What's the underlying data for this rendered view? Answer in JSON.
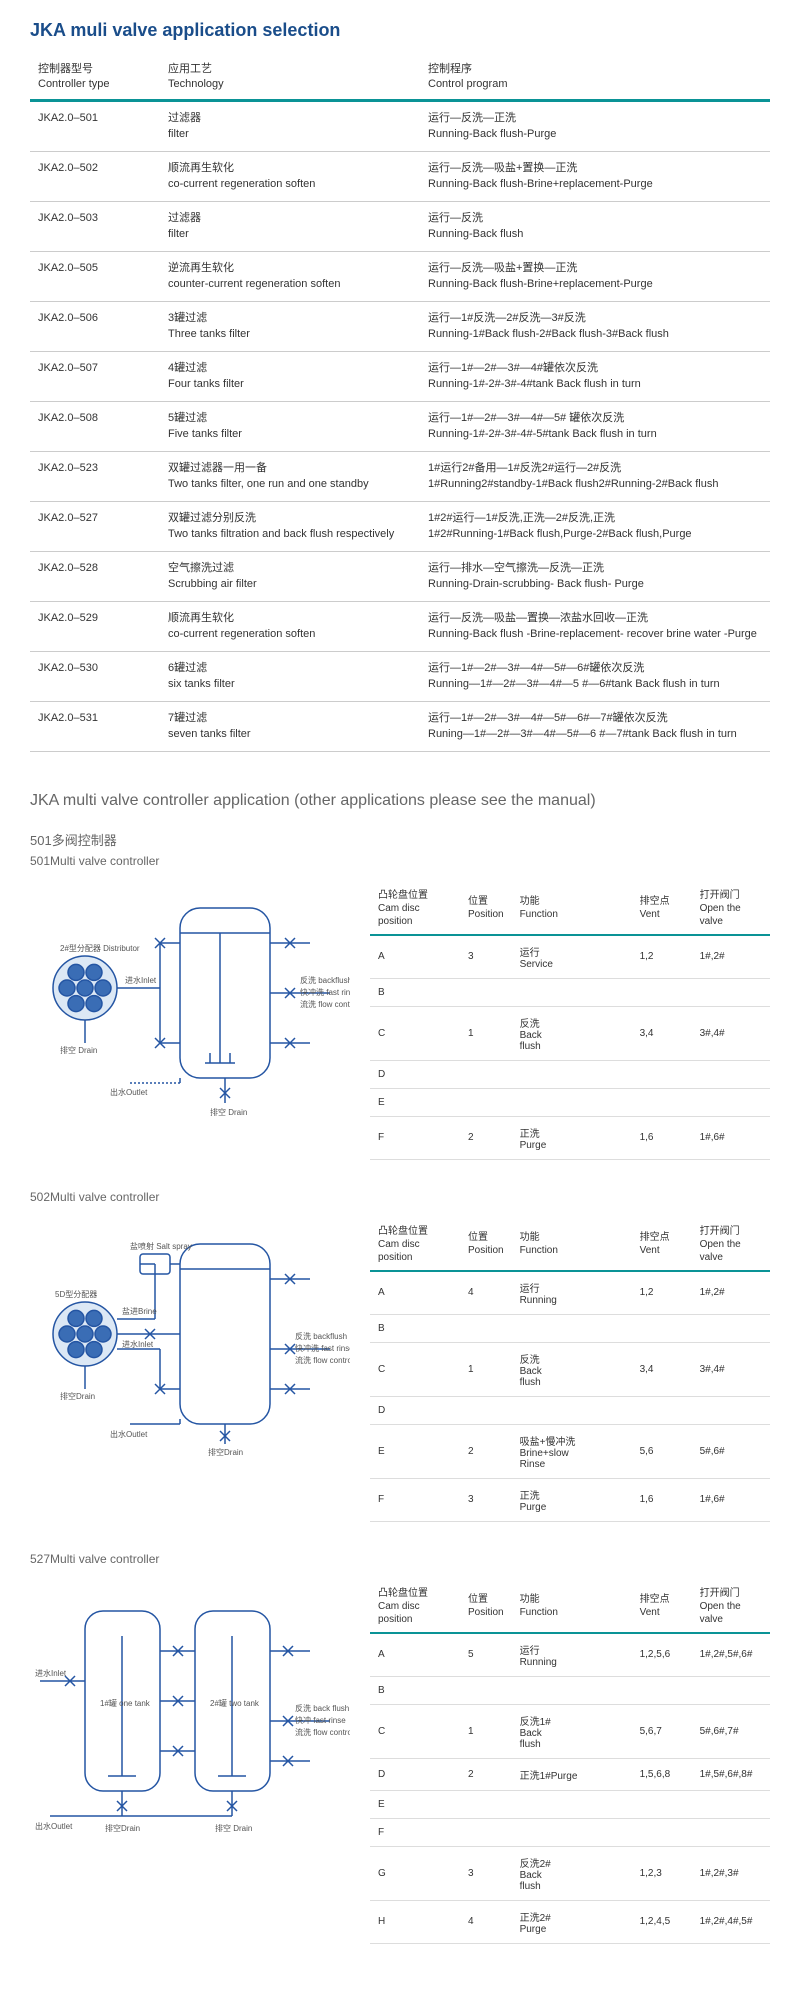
{
  "title": "JKA muli valve application selection",
  "main_headers": {
    "type_cn": "控制器型号",
    "type_en": "Controller type",
    "tech_cn": "应用工艺",
    "tech_en": "Technology",
    "prog_cn": "控制程序",
    "prog_en": "Control program"
  },
  "rows": [
    {
      "type": "JKA2.0–501",
      "tech_cn": "过滤器",
      "tech_en": "filter",
      "prog_cn": "运行—反洗—正洗",
      "prog_en": "Running-Back flush-Purge"
    },
    {
      "type": "JKA2.0–502",
      "tech_cn": "顺流再生软化",
      "tech_en": "co-current regeneration soften",
      "prog_cn": "运行—反洗—吸盐+置换—正洗",
      "prog_en": "Running-Back flush-Brine+replacement-Purge"
    },
    {
      "type": "JKA2.0–503",
      "tech_cn": "过滤器",
      "tech_en": "filter",
      "prog_cn": "运行—反洗",
      "prog_en": "Running-Back flush"
    },
    {
      "type": "JKA2.0–505",
      "tech_cn": "逆流再生软化",
      "tech_en": "counter-current regeneration soften",
      "prog_cn": "运行—反洗—吸盐+置换—正洗",
      "prog_en": "Running-Back flush-Brine+replacement-Purge"
    },
    {
      "type": "JKA2.0–506",
      "tech_cn": "3罐过滤",
      "tech_en": "Three tanks filter",
      "prog_cn": "运行—1#反洗—2#反洗—3#反洗",
      "prog_en": "Running-1#Back flush-2#Back flush-3#Back flush"
    },
    {
      "type": "JKA2.0–507",
      "tech_cn": "4罐过滤",
      "tech_en": "Four tanks filter",
      "prog_cn": "运行—1#—2#—3#—4#罐依次反洗",
      "prog_en": "Running-1#-2#-3#-4#tank Back flush in turn"
    },
    {
      "type": "JKA2.0–508",
      "tech_cn": "5罐过滤",
      "tech_en": "Five tanks filter",
      "prog_cn": "运行—1#—2#—3#—4#—5# 罐依次反洗",
      "prog_en": "Running-1#-2#-3#-4#-5#tank Back flush in turn"
    },
    {
      "type": "JKA2.0–523",
      "tech_cn": "双罐过滤器一用一备",
      "tech_en": "Two tanks filter, one run and one standby",
      "prog_cn": "1#运行2#备用—1#反洗2#运行—2#反洗",
      "prog_en": "1#Running2#standby-1#Back flush2#Running-2#Back flush"
    },
    {
      "type": "JKA2.0–527",
      "tech_cn": "双罐过滤分别反洗",
      "tech_en": "Two tanks filtration and back flush respectively",
      "prog_cn": "1#2#运行—1#反洗,正洗—2#反洗,正洗",
      "prog_en": "1#2#Running-1#Back flush,Purge-2#Back flush,Purge"
    },
    {
      "type": "JKA2.0–528",
      "tech_cn": "空气擦洗过滤",
      "tech_en": "Scrubbing air filter",
      "prog_cn": "运行—排水—空气擦洗—反洗—正洗",
      "prog_en": "Running-Drain-scrubbing- Back flush- Purge"
    },
    {
      "type": "JKA2.0–529",
      "tech_cn": "顺流再生软化",
      "tech_en": "co-current regeneration soften",
      "prog_cn": "运行—反洗—吸盐—置换—浓盐水回收—正洗",
      "prog_en": "Running-Back flush -Brine-replacement- recover brine water -Purge"
    },
    {
      "type": "JKA2.0–530",
      "tech_cn": "6罐过滤",
      "tech_en": "six tanks filter",
      "prog_cn": "运行—1#—2#—3#—4#—5#—6#罐依次反洗",
      "prog_en": "Running—1#—2#—3#—4#—5 #—6#tank Back flush in turn"
    },
    {
      "type": "JKA2.0–531",
      "tech_cn": "7罐过滤",
      "tech_en": "seven tanks filter",
      "prog_cn": "运行—1#—2#—3#—4#—5#—6#—7#罐依次反洗",
      "prog_en": "Runing—1#—2#—3#—4#—5#—6 #—7#tank Back flush in turn"
    }
  ],
  "section2_title": "JKA multi valve controller application (other applications please see the manual)",
  "controllers": [
    {
      "title_cn": "501多阀控制器",
      "title_en": "501Multi valve controller",
      "diagram_labels": {
        "dist": "2#型分配器 Distributor",
        "inlet": "进水Inlet",
        "drain": "排空 Drain",
        "outlet": "出水Outlet",
        "vent": "排空 Drain",
        "bf": "反洗 backflush",
        "fr": "快冲洗 fast rinse",
        "fc": "流洗 flow control"
      },
      "headers": {
        "cam_cn": "凸轮盘位置",
        "cam_en": "Cam disc position",
        "pos_cn": "位置",
        "pos_en": "Position",
        "func_cn": "功能",
        "func_en": "Function",
        "vent_cn": "排空点",
        "vent_en": "Vent",
        "open_cn": "打开阀门",
        "open_en": "Open the valve"
      },
      "rows": [
        {
          "cam": "A",
          "pos": "3",
          "func": "运行 Service",
          "vent": "1,2",
          "open": "1#,2#"
        },
        {
          "cam": "B",
          "pos": "",
          "func": "",
          "vent": "",
          "open": ""
        },
        {
          "cam": "C",
          "pos": "1",
          "func": "反洗 Back flush",
          "vent": "3,4",
          "open": "3#,4#"
        },
        {
          "cam": "D",
          "pos": "",
          "func": "",
          "vent": "",
          "open": ""
        },
        {
          "cam": "E",
          "pos": "",
          "func": "",
          "vent": "",
          "open": ""
        },
        {
          "cam": "F",
          "pos": "2",
          "func": "正洗 Purge",
          "vent": "1,6",
          "open": "1#,6#"
        }
      ]
    },
    {
      "title_cn": "",
      "title_en": "502Multi valve controller",
      "diagram_labels": {
        "spray": "盐喷射 Salt spray",
        "dist": "5D型分配器",
        "inlet": "进水Inlet",
        "outlet": "出水Outlet",
        "drain": "排空Drain",
        "bf": "反洗 backflush",
        "fr": "快冲洗 fast rinse",
        "fc": "流洗 flow control",
        "vent": "排空Drain"
      },
      "headers": {
        "cam_cn": "凸轮盘位置",
        "cam_en": "Cam disc position",
        "pos_cn": "位置",
        "pos_en": "Position",
        "func_cn": "功能",
        "func_en": "Function",
        "vent_cn": "排空点",
        "vent_en": "Vent",
        "open_cn": "打开阀门",
        "open_en": "Open the valve"
      },
      "rows": [
        {
          "cam": "A",
          "pos": "4",
          "func": "运行 Running",
          "vent": "1,2",
          "open": "1#,2#"
        },
        {
          "cam": "B",
          "pos": "",
          "func": "",
          "vent": "",
          "open": ""
        },
        {
          "cam": "C",
          "pos": "1",
          "func": "反洗 Back flush",
          "vent": "3,4",
          "open": "3#,4#"
        },
        {
          "cam": "D",
          "pos": "",
          "func": "",
          "vent": "",
          "open": ""
        },
        {
          "cam": "E",
          "pos": "2",
          "func": "吸盐+慢冲洗 Brine+slow Rinse",
          "vent": "5,6",
          "open": "5#,6#"
        },
        {
          "cam": "F",
          "pos": "3",
          "func": "正洗 Purge",
          "vent": "1,6",
          "open": "1#,6#"
        }
      ]
    },
    {
      "title_cn": "",
      "title_en": "527Multi valve controller",
      "diagram_labels": {
        "inlet": "进水Inlet",
        "tank1": "1#罐 one tank",
        "tank2": "2#罐 two tank",
        "outlet": "出水Outlet",
        "drain": "排空Drain",
        "bf": "反洗 back flush",
        "fr": "快冲 fast rinse",
        "fc": "流洗 flow control",
        "vent": "排空 Drain"
      },
      "headers": {
        "cam_cn": "凸轮盘位置",
        "cam_en": "Cam disc position",
        "pos_cn": "位置",
        "pos_en": "Position",
        "func_cn": "功能",
        "func_en": "Function",
        "vent_cn": "排空点",
        "vent_en": "Vent",
        "open_cn": "打开阀门",
        "open_en": "Open the valve"
      },
      "rows": [
        {
          "cam": "A",
          "pos": "5",
          "func": "运行 Running",
          "vent": "1,2,5,6",
          "open": "1#,2#,5#,6#"
        },
        {
          "cam": "B",
          "pos": "",
          "func": "",
          "vent": "",
          "open": ""
        },
        {
          "cam": "C",
          "pos": "1",
          "func": "反洗1# Back flush",
          "vent": "5,6,7",
          "open": "5#,6#,7#"
        },
        {
          "cam": "D",
          "pos": "2",
          "func": "正洗1#Purge",
          "vent": "1,5,6,8",
          "open": "1#,5#,6#,8#"
        },
        {
          "cam": "E",
          "pos": "",
          "func": "",
          "vent": "",
          "open": ""
        },
        {
          "cam": "F",
          "pos": "",
          "func": "",
          "vent": "",
          "open": ""
        },
        {
          "cam": "G",
          "pos": "3",
          "func": "反洗2# Back flush",
          "vent": "1,2,3",
          "open": "1#,2#,3#"
        },
        {
          "cam": "H",
          "pos": "4",
          "func": "正洗2# Purge",
          "vent": "1,2,4,5",
          "open": "1#,2#,4#,5#"
        }
      ]
    }
  ],
  "colors": {
    "accent": "#0a9396",
    "diagram_stroke": "#2455a3",
    "diagram_fill": "#3a6db5",
    "title_color": "#1a4d8a"
  }
}
